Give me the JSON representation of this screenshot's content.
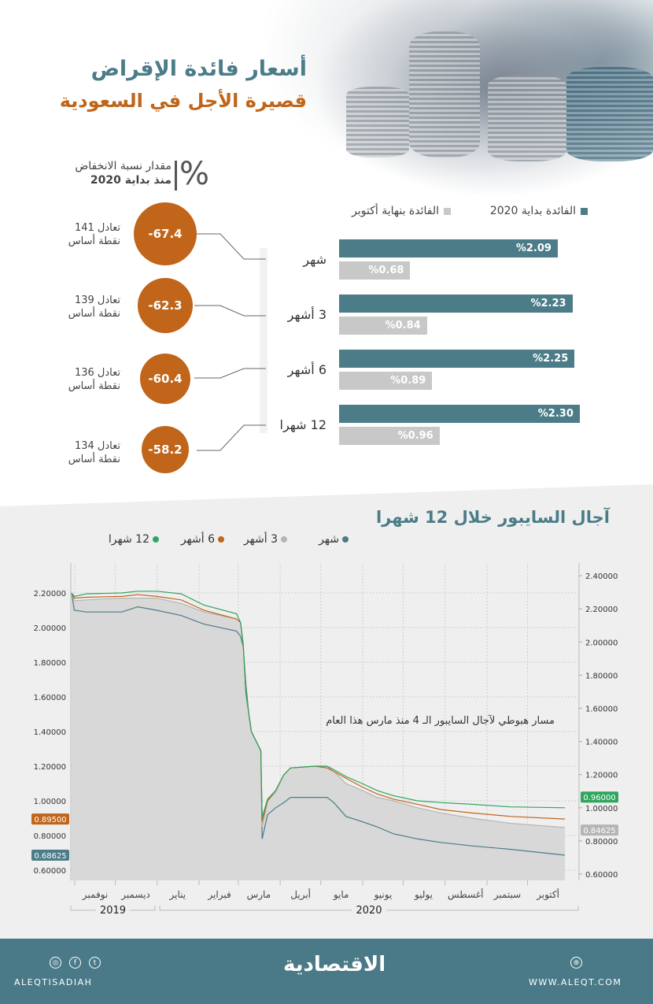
{
  "header": {
    "title": "أسعار فائدة الإقراض",
    "subtitle": "قصيرة الأجل في السعودية",
    "percent_symbol": "%",
    "decline_label_line1": "مقدار نسبة الانخفاض",
    "decline_label_line2": "منذ بداية 2020"
  },
  "declines": [
    {
      "value": "-67.4",
      "eq_line1": "تعادل 141",
      "eq_line2": "نقطة أساس"
    },
    {
      "value": "-62.3",
      "eq_line1": "تعادل 139",
      "eq_line2": "نقطة أساس"
    },
    {
      "value": "-60.4",
      "eq_line1": "تعادل 136",
      "eq_line2": "نقطة أساس"
    },
    {
      "value": "-58.2",
      "eq_line1": "تعادل 134",
      "eq_line2": "نقطة أساس"
    }
  ],
  "chart_data": [
    {
      "type": "bar",
      "orientation": "horizontal",
      "categories": [
        "شهر",
        "3 أشهر",
        "6 أشهر",
        "12 شهرا"
      ],
      "series": [
        {
          "name": "الفائدة بداية 2020",
          "color": "#4b7c87",
          "values": [
            2.09,
            2.23,
            2.25,
            2.3
          ],
          "labels": [
            "%2.09",
            "%2.23",
            "%2.25",
            "%2.30"
          ]
        },
        {
          "name": "الفائدة بنهاية أكتوبر",
          "color": "#c8c8c8",
          "values": [
            0.68,
            0.84,
            0.89,
            0.96
          ],
          "labels": [
            "%0.68",
            "%0.84",
            "%0.89",
            "%0.96"
          ]
        }
      ],
      "legend": "top"
    },
    {
      "type": "line",
      "title": "آجال السايبور خلال 12 شهرا",
      "annotation": "مسار هبوطي لآجال السايبور الـ 4 منذ مارس هذا العام",
      "x": [
        "2019-11-01",
        "2019-11-03",
        "2019-11-12",
        "2019-12-08",
        "2019-12-20",
        "2020-01-03",
        "2020-01-21",
        "2020-02-07",
        "2020-03-02",
        "2020-03-05",
        "2020-03-07",
        "2020-03-09",
        "2020-03-11",
        "2020-03-13",
        "2020-03-20",
        "2020-03-21",
        "2020-03-25",
        "2020-03-31",
        "2020-04-06",
        "2020-04-11",
        "2020-04-29",
        "2020-05-08",
        "2020-05-13",
        "2020-05-22",
        "2020-06-03",
        "2020-06-14",
        "2020-06-26",
        "2020-07-14",
        "2020-07-31",
        "2020-08-23",
        "2020-09-21",
        "2020-10-31"
      ],
      "series": [
        {
          "name": "شهر",
          "color": "#4b7c87",
          "values": [
            2.2,
            2.1,
            2.09,
            2.09,
            2.12,
            2.1,
            2.07,
            2.02,
            1.98,
            1.95,
            1.89,
            1.67,
            1.51,
            1.4,
            1.29,
            0.78,
            0.92,
            0.96,
            0.99,
            1.02,
            1.02,
            1.02,
            0.99,
            0.91,
            0.88,
            0.85,
            0.81,
            0.78,
            0.76,
            0.74,
            0.72,
            0.68625
          ],
          "last_label": "0.68625",
          "label_side": "left"
        },
        {
          "name": "3 أشهر",
          "color": "#b5b5b5",
          "fill": true,
          "values": [
            2.2,
            2.155,
            2.16,
            2.17,
            2.17,
            2.17,
            2.14,
            2.09,
            2.05,
            2.03,
            1.9,
            1.62,
            1.51,
            1.4,
            1.29,
            0.85,
            1.0,
            1.05,
            1.15,
            1.19,
            1.2,
            1.2,
            1.17,
            1.1,
            1.06,
            1.02,
            1.0,
            0.96,
            0.93,
            0.9,
            0.87,
            0.84625
          ],
          "last_label": "0.84625",
          "label_side": "right"
        },
        {
          "name": "6 أشهر",
          "color": "#c0651a",
          "values": [
            2.2,
            2.17,
            2.175,
            2.18,
            2.19,
            2.18,
            2.16,
            2.1,
            2.05,
            2.03,
            1.9,
            1.62,
            1.51,
            1.4,
            1.29,
            0.88,
            1.0,
            1.06,
            1.15,
            1.19,
            1.2,
            1.19,
            1.17,
            1.13,
            1.08,
            1.04,
            1.01,
            0.98,
            0.95,
            0.93,
            0.91,
            0.895
          ],
          "last_label": "0.89500",
          "label_side": "left"
        },
        {
          "name": "12 شهرا",
          "color": "#2fa55f",
          "values": [
            2.2,
            2.18,
            2.195,
            2.2,
            2.21,
            2.21,
            2.195,
            2.13,
            2.08,
            2.03,
            1.9,
            1.62,
            1.51,
            1.4,
            1.29,
            0.905,
            1.01,
            1.06,
            1.15,
            1.19,
            1.2,
            1.2,
            1.18,
            1.14,
            1.1,
            1.06,
            1.03,
            1.0,
            0.99,
            0.98,
            0.965,
            0.96
          ],
          "last_label": "0.96000",
          "label_side": "right"
        }
      ],
      "y_left_ticks": [
        "0.60000",
        "0.80000",
        "1.00000",
        "1.20000",
        "1.40000",
        "1.60000",
        "1.80000",
        "2.00000",
        "2.20000"
      ],
      "y_right_ticks": [
        "0.60000",
        "0.80000",
        "1.00000",
        "1.20000",
        "1.40000",
        "1.60000",
        "1.80000",
        "2.00000",
        "2.20000",
        "2.40000"
      ],
      "ylim_left": [
        0.6,
        2.2
      ],
      "ylim_right": [
        0.6,
        2.4
      ],
      "months": [
        "نوفمبر",
        "ديسمبر",
        "يناير",
        "فبراير",
        "مارس",
        "أبريل",
        "مايو",
        "يونيو",
        "يوليو",
        "أغسطس",
        "سبتمبر",
        "أكتوبر"
      ],
      "years": [
        "2019",
        "2020"
      ],
      "grid": true,
      "legend": "top-left"
    }
  ],
  "footer": {
    "handle": "ALEQTISADIAH",
    "logo": "الاقتصادية",
    "website": "WWW.ALEQT.COM"
  }
}
